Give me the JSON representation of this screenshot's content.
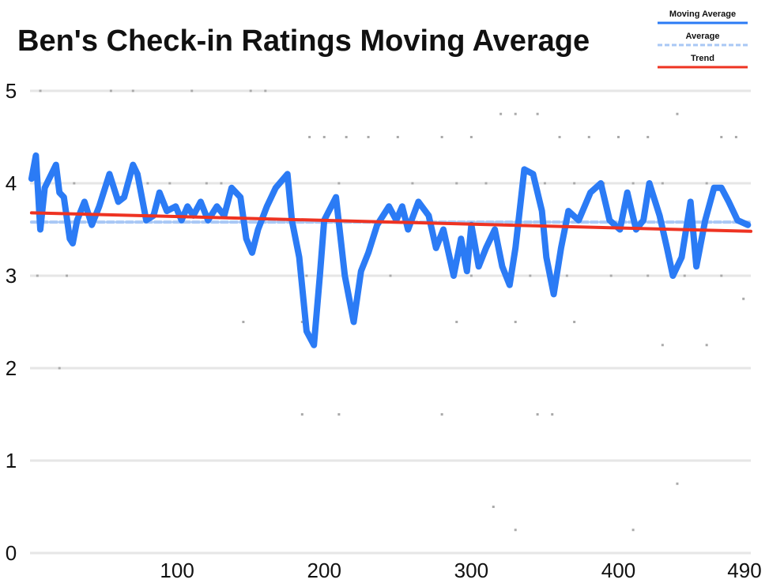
{
  "chart_data": {
    "type": "line",
    "title": "Ben's Check-in Ratings Moving Average",
    "xlim": [
      0,
      490
    ],
    "ylim": [
      0,
      5
    ],
    "xticks": [
      100,
      200,
      300,
      400,
      490
    ],
    "yticks": [
      0,
      1,
      2,
      3,
      4,
      5
    ],
    "grid": true,
    "legend": "upper right",
    "points": {
      "color": "#aaaaaa",
      "x": [
        7,
        55,
        70,
        110,
        150,
        160,
        190,
        200,
        215,
        230,
        250,
        280,
        300,
        320,
        330,
        345,
        360,
        380,
        400,
        420,
        440,
        470,
        480,
        12,
        30,
        80,
        95,
        120,
        130,
        170,
        210,
        260,
        290,
        310,
        350,
        370,
        390,
        410,
        430,
        460,
        5,
        25,
        188,
        215,
        225,
        245,
        300,
        340,
        355,
        365,
        395,
        420,
        445,
        470,
        20,
        145,
        185,
        220,
        290,
        330,
        370,
        430,
        460,
        185,
        210,
        280,
        345,
        355,
        315,
        330,
        440,
        410,
        485
      ],
      "y": [
        5,
        5,
        5,
        5,
        5,
        5,
        4.5,
        4.5,
        4.5,
        4.5,
        4.5,
        4.5,
        4.5,
        4.75,
        4.75,
        4.75,
        4.5,
        4.5,
        4.5,
        4.5,
        4.75,
        4.5,
        4.5,
        4,
        4,
        4,
        4,
        4,
        4,
        4,
        4,
        4,
        4,
        4,
        4,
        4,
        4,
        4,
        4,
        4,
        3,
        3,
        3,
        3,
        3,
        3,
        3,
        3,
        3,
        3,
        3,
        3,
        3,
        3,
        2,
        2.5,
        2.5,
        2.5,
        2.5,
        2.5,
        2.5,
        2.25,
        2.25,
        1.5,
        1.5,
        1.5,
        1.5,
        1.5,
        0.5,
        0.25,
        0.75,
        0.25,
        2.75
      ]
    },
    "series": [
      {
        "name": "Moving Average",
        "color": "#2b7bf5",
        "x": [
          1,
          4,
          7,
          10,
          17.6,
          20,
          23,
          27,
          29,
          32,
          37,
          42,
          47,
          54,
          60,
          64,
          70,
          73,
          79,
          84,
          88,
          93,
          99,
          103,
          107,
          111,
          116,
          121,
          127,
          132,
          137,
          143,
          147,
          151,
          155,
          161,
          167,
          175,
          178,
          183,
          188,
          193,
          197,
          200,
          208,
          214,
          220,
          225,
          230,
          236,
          244,
          249,
          253,
          257,
          264,
          271,
          276,
          281,
          288,
          293,
          297,
          300,
          305,
          310,
          316,
          321,
          326,
          330,
          336,
          342,
          348,
          351,
          356,
          361,
          366,
          373,
          381,
          388,
          394,
          401,
          406,
          412,
          417,
          421,
          428,
          433,
          437,
          443,
          449,
          453,
          459,
          465,
          470,
          475,
          481,
          488
        ],
        "values": [
          4.05,
          4.3,
          3.5,
          3.95,
          4.2,
          3.9,
          3.85,
          3.4,
          3.35,
          3.6,
          3.8,
          3.55,
          3.75,
          4.1,
          3.8,
          3.85,
          4.2,
          4.1,
          3.6,
          3.65,
          3.9,
          3.7,
          3.75,
          3.6,
          3.75,
          3.65,
          3.8,
          3.6,
          3.75,
          3.65,
          3.95,
          3.85,
          3.4,
          3.25,
          3.5,
          3.75,
          3.95,
          4.1,
          3.6,
          3.2,
          2.4,
          2.25,
          3.0,
          3.6,
          3.85,
          3.0,
          2.5,
          3.05,
          3.25,
          3.55,
          3.75,
          3.6,
          3.75,
          3.5,
          3.8,
          3.65,
          3.3,
          3.5,
          3.0,
          3.4,
          3.05,
          3.55,
          3.1,
          3.3,
          3.5,
          3.1,
          2.9,
          3.3,
          4.15,
          4.1,
          3.7,
          3.2,
          2.8,
          3.3,
          3.7,
          3.6,
          3.9,
          4.0,
          3.6,
          3.5,
          3.9,
          3.5,
          3.6,
          4.0,
          3.65,
          3.3,
          3.0,
          3.2,
          3.8,
          3.1,
          3.6,
          3.95,
          3.95,
          3.8,
          3.6,
          3.55
        ]
      },
      {
        "name": "Average",
        "color": "#a9c8f5",
        "dashed": true,
        "x": [
          1,
          490
        ],
        "values": [
          3.58,
          3.58
        ]
      },
      {
        "name": "Trend",
        "color": "#ee3322",
        "x": [
          1,
          490
        ],
        "values": [
          3.68,
          3.48
        ]
      }
    ]
  }
}
